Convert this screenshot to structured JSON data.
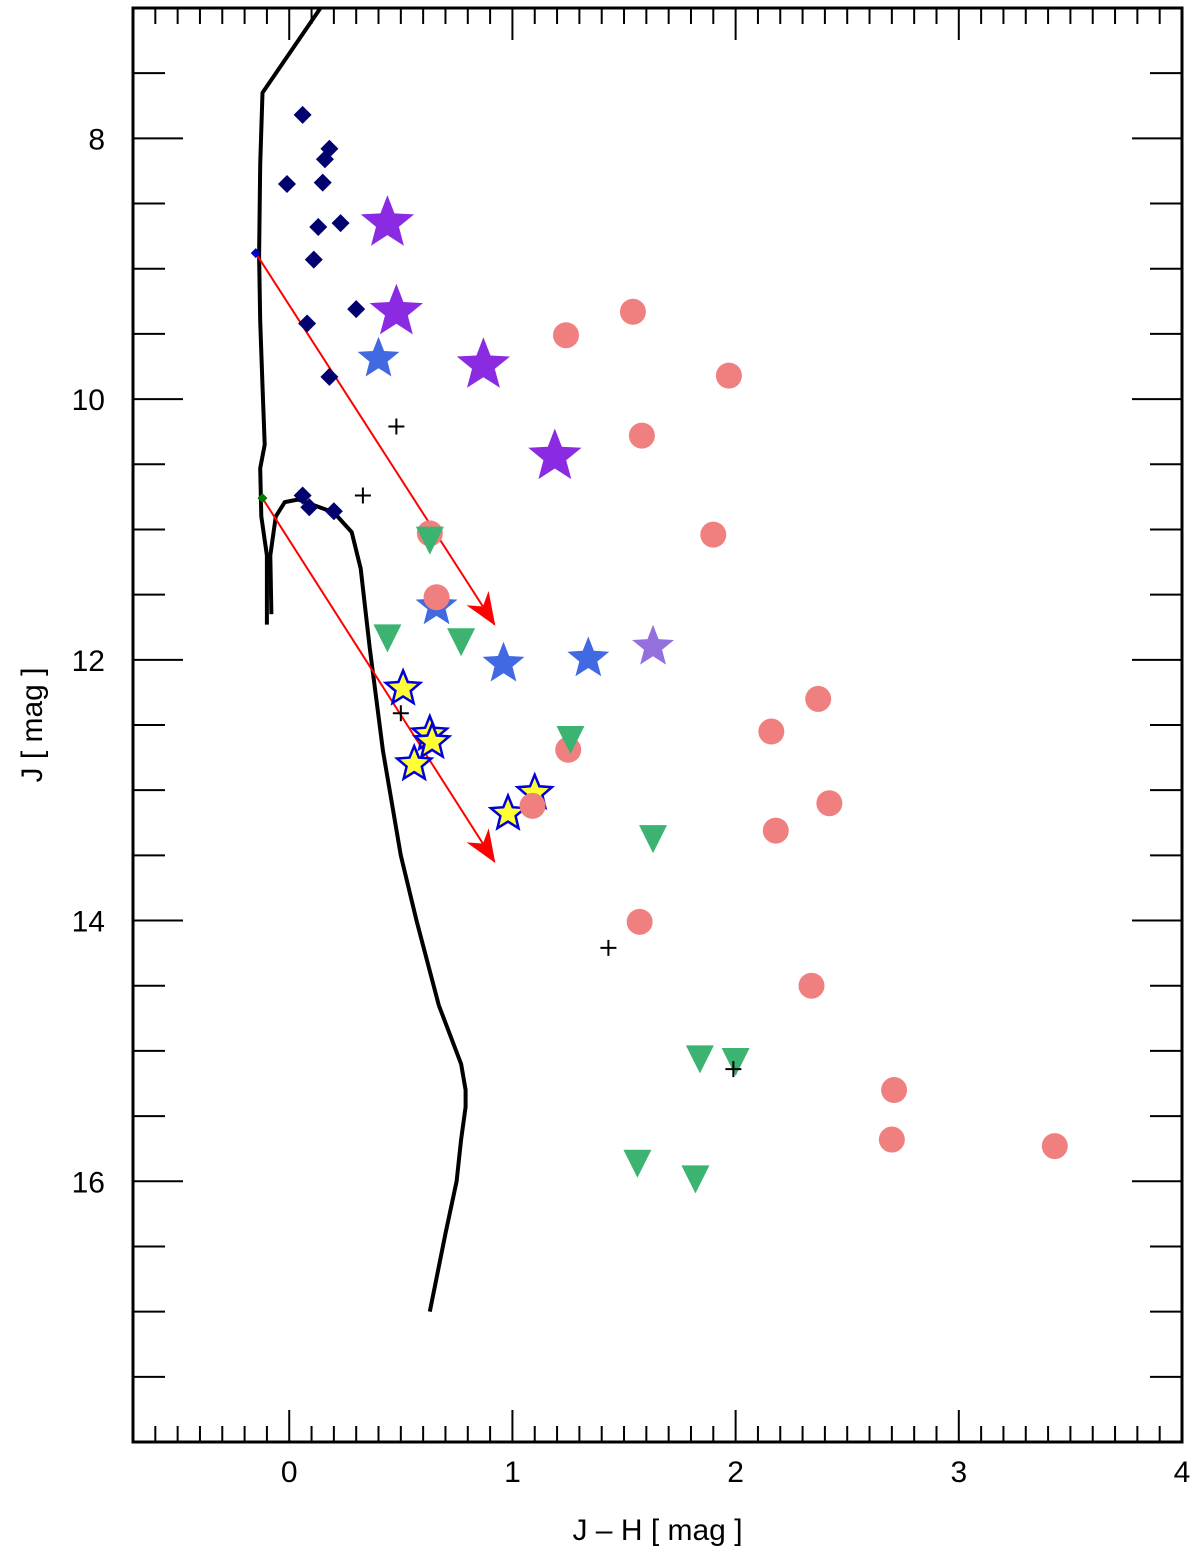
{
  "chart_data": {
    "type": "scatter",
    "xlabel": "J – H  [ mag ]",
    "ylabel": "J  [ mag ]",
    "xlim": [
      -0.7,
      4.0
    ],
    "ylim": [
      18.0,
      8.0
    ],
    "y_display_range": [
      7.0,
      17.0
    ],
    "y_inverted": true,
    "grid": false,
    "xticks": [
      0,
      1,
      2,
      3,
      4
    ],
    "xtick_labels": [
      "0",
      "1",
      "2",
      "3",
      "4"
    ],
    "yticks": [
      8,
      10,
      12,
      14,
      16
    ],
    "ytick_labels": [
      "8",
      "10",
      "12",
      "14",
      "16"
    ],
    "colors": {
      "navy_diamond": "#00006e",
      "purple_star": "#8a2be2",
      "blue_star": "#4169e1",
      "light_purple_star": "#9370db",
      "yellow_star_fill": "#ffff33",
      "yellow_star_edge": "#0000dd",
      "salmon_circle": "#f08080",
      "green_triangle": "#3cb371",
      "black": "#000000",
      "red_arrow": "#ff0000"
    },
    "series": [
      {
        "marker": "diamond",
        "color": "#00006e",
        "points": [
          [
            0.06,
            7.82
          ],
          [
            0.16,
            8.16
          ],
          [
            0.18,
            8.08
          ],
          [
            -0.01,
            8.35
          ],
          [
            0.15,
            8.34
          ],
          [
            0.13,
            8.68
          ],
          [
            0.23,
            8.65
          ],
          [
            0.11,
            8.93
          ],
          [
            0.3,
            9.31
          ],
          [
            0.08,
            9.42
          ],
          [
            0.18,
            9.83
          ],
          [
            0.06,
            10.74
          ],
          [
            0.09,
            10.83
          ],
          [
            0.2,
            10.86
          ]
        ]
      },
      {
        "marker": "star-large",
        "color": "#8a2be2",
        "points": [
          [
            0.44,
            8.65
          ],
          [
            0.48,
            9.33
          ],
          [
            0.87,
            9.74
          ],
          [
            1.19,
            10.44
          ]
        ]
      },
      {
        "marker": "star",
        "color": "#4169e1",
        "points": [
          [
            0.4,
            9.69
          ],
          [
            0.66,
            11.59
          ],
          [
            0.96,
            12.03
          ],
          [
            1.34,
            11.99
          ]
        ]
      },
      {
        "marker": "star",
        "color": "#9370db",
        "points": [
          [
            1.63,
            11.9
          ]
        ]
      },
      {
        "marker": "star-outlined",
        "color": "#ffff33",
        "edge": "#0000dd",
        "points": [
          [
            0.51,
            12.22
          ],
          [
            0.63,
            12.57
          ],
          [
            0.64,
            12.63
          ],
          [
            0.56,
            12.8
          ],
          [
            1.1,
            13.02
          ],
          [
            0.98,
            13.18
          ]
        ]
      },
      {
        "marker": "circle",
        "color": "#f08080",
        "points": [
          [
            1.54,
            9.33
          ],
          [
            1.24,
            9.51
          ],
          [
            1.97,
            9.82
          ],
          [
            1.58,
            10.28
          ],
          [
            0.63,
            11.03
          ],
          [
            1.9,
            11.04
          ],
          [
            0.66,
            11.52
          ],
          [
            2.37,
            12.3
          ],
          [
            2.16,
            12.55
          ],
          [
            1.25,
            12.69
          ],
          [
            2.42,
            13.1
          ],
          [
            1.09,
            13.12
          ],
          [
            2.18,
            13.31
          ],
          [
            1.57,
            14.01
          ],
          [
            2.34,
            14.5
          ],
          [
            2.71,
            15.3
          ],
          [
            2.7,
            15.68
          ],
          [
            3.43,
            15.73
          ]
        ]
      },
      {
        "marker": "triangle-down",
        "color": "#3cb371",
        "points": [
          [
            0.63,
            11.07
          ],
          [
            0.44,
            11.82
          ],
          [
            0.77,
            11.85
          ],
          [
            1.26,
            12.6
          ],
          [
            1.63,
            13.36
          ],
          [
            1.84,
            15.05
          ],
          [
            2.0,
            15.07
          ],
          [
            1.56,
            15.85
          ],
          [
            1.82,
            15.97
          ]
        ]
      },
      {
        "marker": "plus",
        "color": "#000000",
        "points": [
          [
            0.48,
            10.21
          ],
          [
            0.33,
            10.74
          ],
          [
            0.5,
            12.41
          ],
          [
            1.43,
            14.21
          ],
          [
            1.99,
            15.14
          ]
        ]
      }
    ],
    "curve_upper": [
      [
        0.14,
        7.0
      ],
      [
        -0.12,
        7.65
      ],
      [
        -0.13,
        8.2
      ],
      [
        -0.135,
        8.9
      ],
      [
        -0.13,
        9.4
      ],
      [
        -0.12,
        9.9
      ],
      [
        -0.11,
        10.35
      ],
      [
        -0.13,
        10.53
      ],
      [
        -0.125,
        10.9
      ],
      [
        -0.1,
        11.2
      ],
      [
        -0.1,
        11.43
      ],
      [
        -0.1,
        11.73
      ]
    ],
    "curve_lower": [
      [
        -0.08,
        11.65
      ],
      [
        -0.085,
        11.2
      ],
      [
        -0.06,
        10.9
      ],
      [
        -0.02,
        10.79
      ],
      [
        0.04,
        10.77
      ],
      [
        0.2,
        10.87
      ],
      [
        0.28,
        11.02
      ],
      [
        0.32,
        11.3
      ],
      [
        0.36,
        11.9
      ],
      [
        0.42,
        12.7
      ],
      [
        0.5,
        13.5
      ],
      [
        0.57,
        14.0
      ],
      [
        0.67,
        14.65
      ],
      [
        0.77,
        15.1
      ],
      [
        0.79,
        15.3
      ],
      [
        0.79,
        15.43
      ],
      [
        0.77,
        15.68
      ],
      [
        0.75,
        16.0
      ],
      [
        0.7,
        16.4
      ],
      [
        0.63,
        17.0
      ]
    ],
    "reddening_vectors": [
      {
        "from": [
          -0.15,
          8.88
        ],
        "to": [
          0.92,
          11.73
        ],
        "color": "#ff0000",
        "start_marker_color": "#0000cc"
      },
      {
        "from": [
          -0.12,
          10.76
        ],
        "to": [
          0.92,
          13.55
        ],
        "color": "#ff0000",
        "start_marker_color": "#007700"
      }
    ]
  }
}
